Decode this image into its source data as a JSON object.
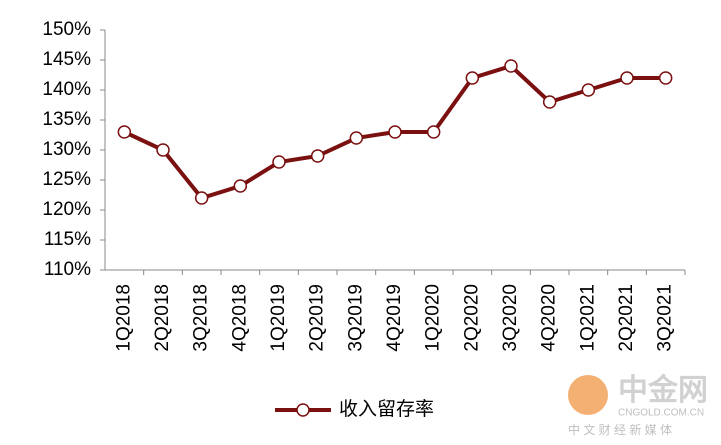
{
  "chart_data": {
    "type": "line",
    "categories": [
      "1Q2018",
      "2Q2018",
      "3Q2018",
      "4Q2018",
      "1Q2019",
      "2Q2019",
      "3Q2019",
      "4Q2019",
      "1Q2020",
      "2Q2020",
      "3Q2020",
      "4Q2020",
      "1Q2021",
      "2Q2021",
      "3Q2021"
    ],
    "series": [
      {
        "name": "收入留存率",
        "color": "#7b1010",
        "values": [
          133,
          130,
          122,
          124,
          128,
          129,
          132,
          133,
          133,
          142,
          144,
          138,
          140,
          142,
          142
        ]
      }
    ],
    "ylim": [
      110,
      150
    ],
    "yticks": [
      {
        "value": 110,
        "label": "110%"
      },
      {
        "value": 115,
        "label": "115%"
      },
      {
        "value": 120,
        "label": "120%"
      },
      {
        "value": 125,
        "label": "125%"
      },
      {
        "value": 130,
        "label": "130%"
      },
      {
        "value": 135,
        "label": "135%"
      },
      {
        "value": 140,
        "label": "140%"
      },
      {
        "value": 145,
        "label": "145%"
      },
      {
        "value": 150,
        "label": "150%"
      }
    ],
    "grid": false,
    "legend": "bottom"
  },
  "watermark": {
    "title": "中金网",
    "url": "CNGOLD.COM.CN",
    "tagline": "中 文 财 经 新 媒 体"
  }
}
